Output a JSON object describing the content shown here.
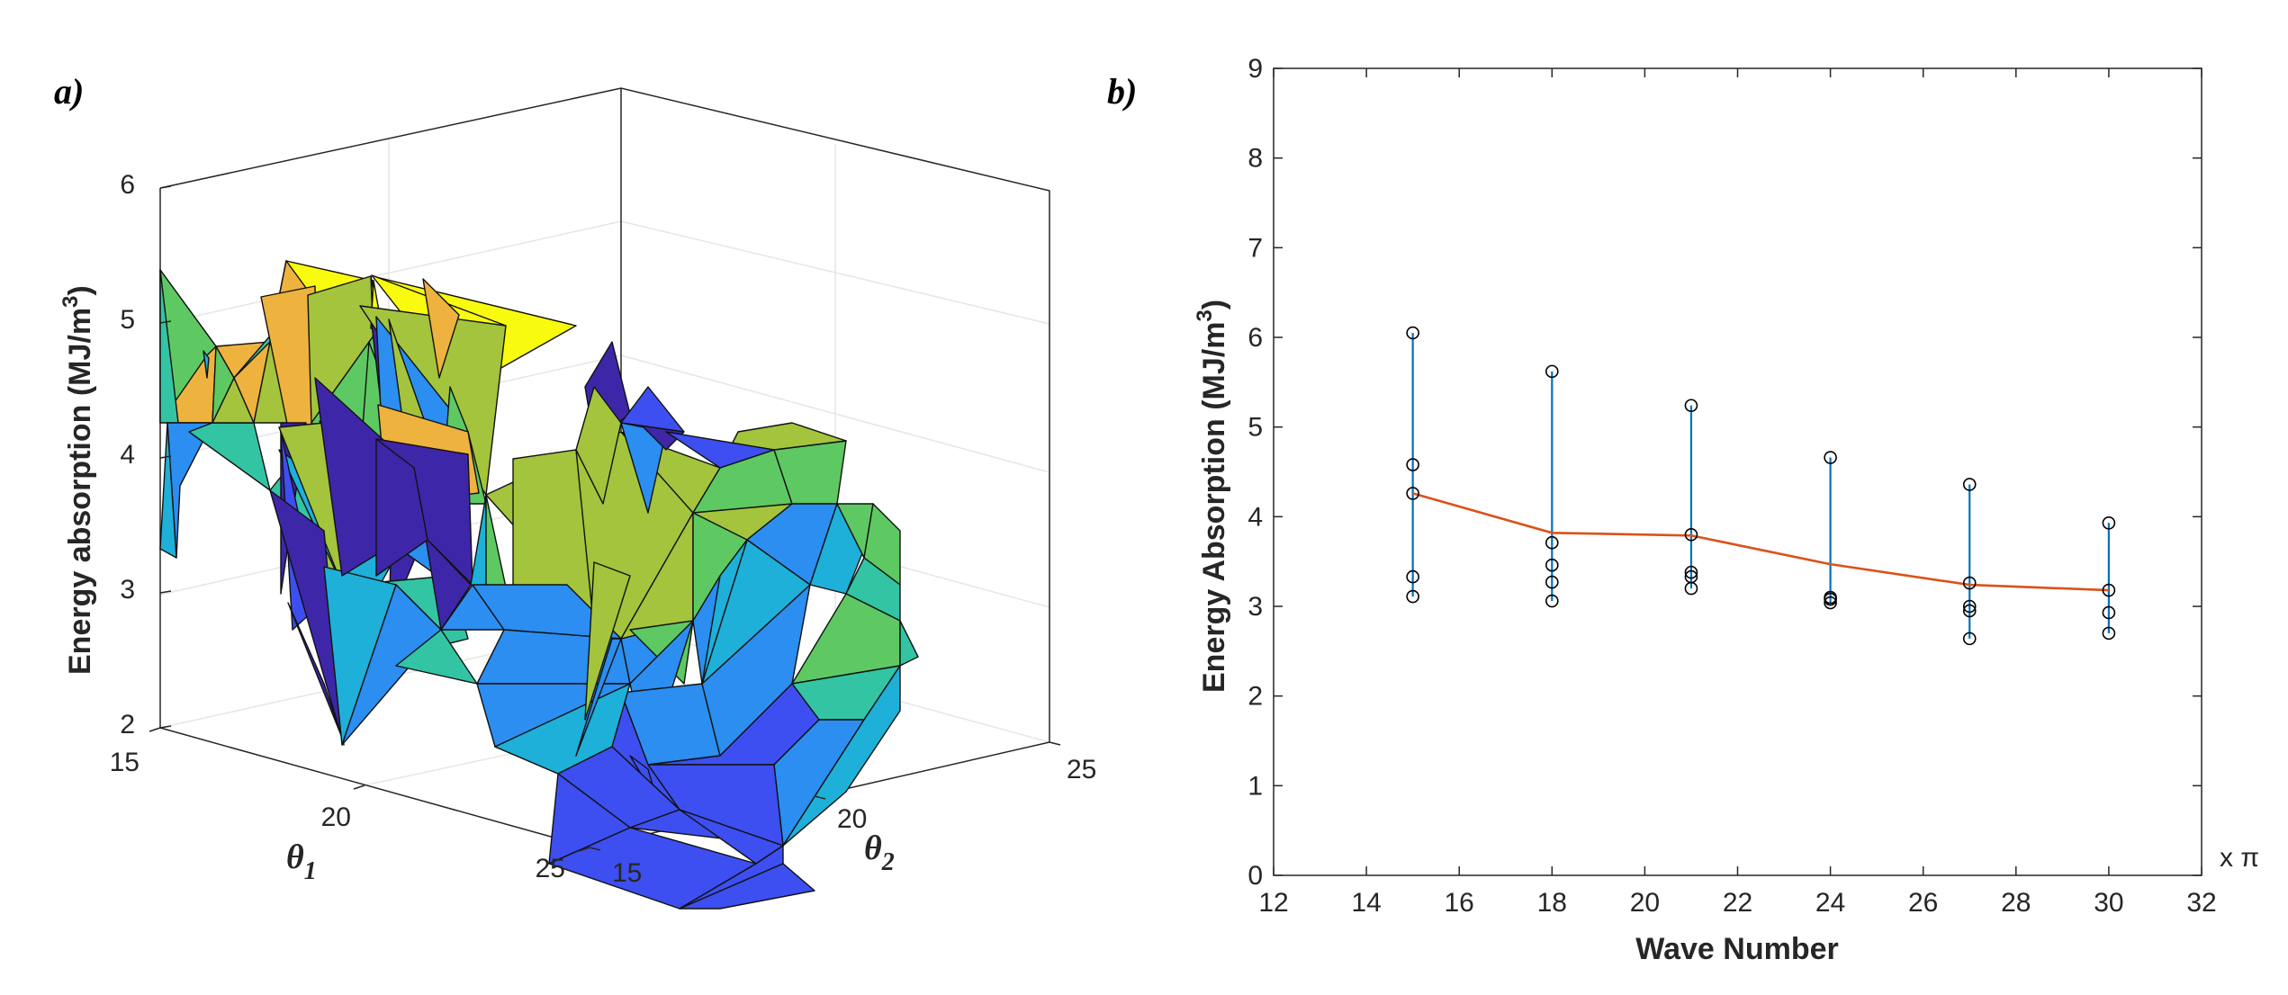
{
  "panel_a": {
    "label": "a)",
    "zlabel": "Energy absorption (MJ/m",
    "zlabel_sup": "3",
    "zlabel_end": ")",
    "xlabel_base": "θ",
    "xlabel_sub": "1",
    "ylabel_base": "θ",
    "ylabel_sub": "2",
    "z_ticks": [
      "2",
      "3",
      "4",
      "5",
      "6"
    ],
    "x_ticks": [
      "15",
      "20",
      "25"
    ],
    "y_ticks": [
      "15",
      "20",
      "25"
    ],
    "colormap": [
      "#3e26a8",
      "#3d4ff0",
      "#2b8ef0",
      "#1eb0d8",
      "#33c4a4",
      "#5ec962",
      "#a3c43c",
      "#eeb23e",
      "#f9fb0e"
    ]
  },
  "panel_b": {
    "label": "b)",
    "xlabel": "Wave Number",
    "ylabel": "Energy Absorption (MJ/m",
    "ylabel_sup": "3",
    "ylabel_end": ")",
    "x_multiplier": "x π",
    "colors": {
      "stem": "#0072bd",
      "mean_line": "#d95319",
      "marker": "#000000"
    }
  },
  "chart_data": [
    {
      "type": "surface",
      "title": "",
      "xlabel": "θ1",
      "ylabel": "θ2",
      "zlabel": "Energy absorption (MJ/m3)",
      "xlim": [
        15,
        25
      ],
      "ylim": [
        15,
        25
      ],
      "zlim": [
        2,
        6
      ],
      "note": "3D faceted surface of energy absorption over θ1 and θ2; values range roughly 2.1 to 5.4 MJ/m3"
    },
    {
      "type": "scatter",
      "title": "",
      "xlabel": "Wave Number",
      "ylabel": "Energy Absorption (MJ/m3)",
      "xlim": [
        12,
        32
      ],
      "ylim": [
        0,
        9
      ],
      "x_ticks": [
        12,
        14,
        16,
        18,
        20,
        22,
        24,
        26,
        28,
        30,
        32
      ],
      "y_ticks": [
        0,
        1,
        2,
        3,
        4,
        5,
        6,
        7,
        8,
        9
      ],
      "grid": false,
      "series": [
        {
          "name": "samples",
          "points": [
            {
              "x": 15,
              "values": [
                6.05,
                4.58,
                4.26,
                3.33,
                3.11
              ]
            },
            {
              "x": 18,
              "values": [
                5.62,
                3.71,
                3.46,
                3.27,
                3.06
              ]
            },
            {
              "x": 21,
              "values": [
                5.24,
                3.8,
                3.38,
                3.33,
                3.2
              ]
            },
            {
              "x": 24,
              "values": [
                4.66,
                3.1,
                3.08,
                3.04
              ]
            },
            {
              "x": 27,
              "values": [
                4.36,
                3.26,
                3.0,
                2.95,
                2.64
              ]
            },
            {
              "x": 30,
              "values": [
                3.93,
                3.18,
                2.93,
                2.7
              ]
            }
          ]
        },
        {
          "name": "mean",
          "x": [
            15,
            18,
            21,
            24,
            27,
            30
          ],
          "values": [
            4.26,
            3.82,
            3.79,
            3.47,
            3.24,
            3.18
          ]
        }
      ]
    }
  ]
}
